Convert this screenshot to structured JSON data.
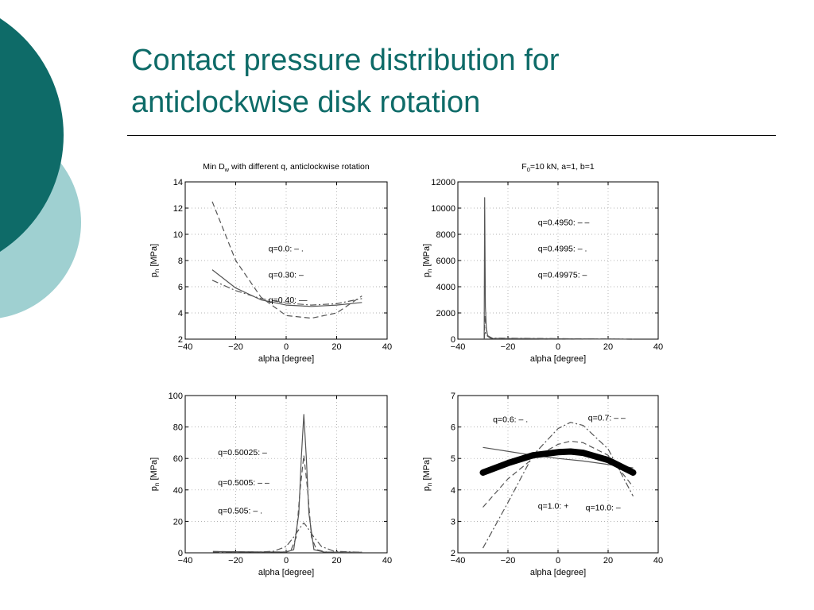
{
  "slide": {
    "title_line1": "Contact pressure distribution for",
    "title_line2": "anticlockwise disk rotation",
    "theme_colors": {
      "dark_teal": "#0e6b68",
      "light_teal": "#9fd0d1",
      "title": "#0e6b68"
    }
  },
  "chart_data": [
    {
      "type": "line",
      "title": "Min D_w with different q, anticlockwise rotation",
      "xlabel": "alpha [degree]",
      "ylabel": "p_n [MPa]",
      "xlim": [
        -40,
        40
      ],
      "ylim": [
        2,
        14
      ],
      "xticks": [
        -40,
        -20,
        0,
        20,
        40
      ],
      "yticks": [
        2,
        4,
        6,
        8,
        10,
        12,
        14
      ],
      "grid": true,
      "annotations": [
        {
          "text": "q=0.0: – .",
          "x": -7,
          "y": 8.7
        },
        {
          "text": "q=0.30: –",
          "x": -7,
          "y": 6.7
        },
        {
          "text": "q=0.40: —",
          "x": -7,
          "y": 4.8
        }
      ],
      "series": [
        {
          "style": "dashdot",
          "x": [
            -29.3,
            -20,
            -10,
            0,
            10,
            20,
            30
          ],
          "y": [
            6.5,
            5.7,
            5.1,
            4.75,
            4.6,
            4.7,
            5.1
          ]
        },
        {
          "style": "dashed",
          "x": [
            -29.3,
            -20,
            -10,
            0,
            10,
            20,
            30
          ],
          "y": [
            12.5,
            8.0,
            5.2,
            3.8,
            3.6,
            4.0,
            5.3
          ]
        },
        {
          "style": "solid",
          "x": [
            -29.3,
            -20,
            -10,
            0,
            10,
            20,
            30
          ],
          "y": [
            7.3,
            5.9,
            5.0,
            4.6,
            4.5,
            4.6,
            4.8
          ]
        }
      ]
    },
    {
      "type": "line",
      "title": "F_0=10 kN, a=1, b=1",
      "xlabel": "alpha [degree]",
      "ylabel": "p_n [MPa]",
      "xlim": [
        -40,
        40
      ],
      "ylim": [
        0,
        12000
      ],
      "xticks": [
        -40,
        -20,
        0,
        20,
        40
      ],
      "yticks": [
        0,
        2000,
        4000,
        6000,
        8000,
        10000,
        12000
      ],
      "grid": true,
      "annotations": [
        {
          "text": "q=0.4950: – –",
          "x": -8,
          "y": 8700
        },
        {
          "text": "q=0.4995: – .",
          "x": -8,
          "y": 6700
        },
        {
          "text": "q=0.49975: –",
          "x": -8,
          "y": 4700
        }
      ],
      "series": [
        {
          "style": "solid",
          "x": [
            -29.5,
            -29.3,
            -29.0,
            -28.6,
            -28.0,
            -26.0,
            30
          ],
          "y": [
            0,
            10800,
            2500,
            700,
            200,
            50,
            0
          ]
        },
        {
          "style": "dashed",
          "x": [
            -29.5,
            -29.2,
            -28.8,
            -28.0,
            -26.0,
            30
          ],
          "y": [
            0,
            1800,
            900,
            250,
            50,
            0
          ]
        },
        {
          "style": "dashdot",
          "x": [
            -29.5,
            -29.2,
            -28.6,
            -27.0,
            30
          ],
          "y": [
            0,
            600,
            300,
            80,
            0
          ]
        }
      ]
    },
    {
      "type": "line",
      "title": "",
      "xlabel": "alpha [degree]",
      "ylabel": "p_n [MPa]",
      "xlim": [
        -40,
        40
      ],
      "ylim": [
        0,
        100
      ],
      "xticks": [
        -40,
        -20,
        0,
        20,
        40
      ],
      "yticks": [
        0,
        20,
        40,
        60,
        80,
        100
      ],
      "grid": true,
      "annotations": [
        {
          "text": "q=0.50025: –",
          "x": -27,
          "y": 62
        },
        {
          "text": "q=0.5005: – –",
          "x": -27,
          "y": 43
        },
        {
          "text": "q=0.505: – .",
          "x": -27,
          "y": 25
        }
      ],
      "series": [
        {
          "style": "solid",
          "x": [
            -29,
            -10,
            0,
            3,
            5,
            6,
            7,
            8,
            9,
            11,
            15,
            30
          ],
          "y": [
            0.8,
            0.5,
            0.5,
            2,
            25,
            60,
            88,
            60,
            25,
            2,
            0.5,
            0.3
          ]
        },
        {
          "style": "dashed",
          "x": [
            -29,
            -10,
            0,
            2,
            4,
            5.5,
            7,
            8.5,
            10,
            12,
            16,
            30
          ],
          "y": [
            0.8,
            0.5,
            0.5,
            2,
            10,
            40,
            62,
            40,
            10,
            2,
            0.5,
            0.3
          ]
        },
        {
          "style": "dashdot",
          "x": [
            -29,
            -10,
            -5,
            0,
            3,
            6,
            7,
            8,
            11,
            14,
            19,
            30
          ],
          "y": [
            0.5,
            0.5,
            1,
            4,
            10,
            17,
            19,
            17,
            10,
            4,
            1,
            0.3
          ]
        }
      ]
    },
    {
      "type": "line",
      "title": "",
      "xlabel": "alpha [degree]",
      "ylabel": "p_n [MPa]",
      "xlim": [
        -40,
        40
      ],
      "ylim": [
        2,
        7
      ],
      "xticks": [
        -40,
        -20,
        0,
        20,
        40
      ],
      "yticks": [
        2,
        3,
        4,
        5,
        6,
        7
      ],
      "grid": true,
      "annotations": [
        {
          "text": "q=0.6: – .",
          "x": -26,
          "y": 6.15
        },
        {
          "text": "q=0.7: – –",
          "x": 12,
          "y": 6.2
        },
        {
          "text": "q=1.0: +",
          "x": -8,
          "y": 3.4
        },
        {
          "text": "q=10.0: –",
          "x": 11,
          "y": 3.35
        }
      ],
      "series": [
        {
          "style": "dashdot",
          "x": [
            -30,
            -20,
            -10,
            0,
            5,
            10,
            20,
            30
          ],
          "y": [
            2.15,
            3.6,
            5.1,
            5.95,
            6.15,
            6.05,
            5.3,
            3.8
          ]
        },
        {
          "style": "dashed",
          "x": [
            -30,
            -20,
            -10,
            0,
            5,
            10,
            20,
            30
          ],
          "y": [
            3.45,
            4.35,
            5.0,
            5.45,
            5.55,
            5.5,
            5.1,
            4.1
          ]
        },
        {
          "style": "solid",
          "x": [
            -30,
            -10,
            0,
            10,
            30
          ],
          "y": [
            5.35,
            5.1,
            5.0,
            4.92,
            4.7
          ]
        },
        {
          "style": "thick",
          "x": [
            -30,
            -20,
            -10,
            0,
            5,
            10,
            20,
            30
          ],
          "y": [
            4.55,
            4.85,
            5.1,
            5.2,
            5.22,
            5.18,
            4.95,
            4.55
          ]
        }
      ]
    }
  ]
}
